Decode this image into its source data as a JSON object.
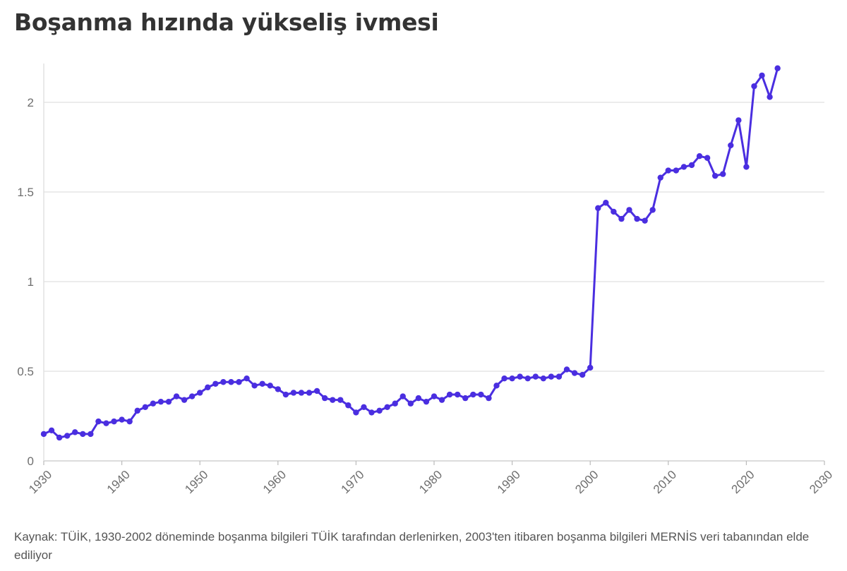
{
  "title": "Boşanma hızında yükseliş ivmesi",
  "source": "Kaynak: TÜİK, 1930-2002 döneminde boşanma bilgileri TÜİK tarafından derlenirken, 2003'ten itibaren boşanma bilgileri MERNİS veri tabanından elde ediliyor",
  "colors": {
    "line": "#4a2ee0",
    "grid": "#e6e6e6",
    "axis_text": "#6e6e6e",
    "title": "#333333"
  },
  "chart_data": {
    "type": "line",
    "title": "Boşanma hızında yükseliş ivmesi",
    "xlabel": "",
    "ylabel": "",
    "xlim": [
      1930,
      2030
    ],
    "ylim": [
      0,
      2.2
    ],
    "x_ticks": [
      1930,
      1940,
      1950,
      1960,
      1970,
      1980,
      1990,
      2000,
      2010,
      2020,
      2030
    ],
    "y_ticks": [
      0,
      0.5,
      1,
      1.5,
      2
    ],
    "y_tick_labels": [
      "0",
      "0.5",
      "1",
      "1.5",
      "2"
    ],
    "grid": "horizontal",
    "legend": "none",
    "series": [
      {
        "x": [
          1930,
          1931,
          1932,
          1933,
          1934,
          1935,
          1936,
          1937,
          1938,
          1939,
          1940,
          1941,
          1942,
          1943,
          1944,
          1945,
          1946,
          1947,
          1948,
          1949,
          1950,
          1951,
          1952,
          1953,
          1954,
          1955,
          1956,
          1957,
          1958,
          1959,
          1960,
          1961,
          1962,
          1963,
          1964,
          1965,
          1966,
          1967,
          1968,
          1969,
          1970,
          1971,
          1972,
          1973,
          1974,
          1975,
          1976,
          1977,
          1978,
          1979,
          1980,
          1981,
          1982,
          1983,
          1984,
          1985,
          1986,
          1987,
          1988,
          1989,
          1990,
          1991,
          1992,
          1993,
          1994,
          1995,
          1996,
          1997,
          1998,
          1999,
          2000,
          2001,
          2002,
          2003,
          2004,
          2005,
          2006,
          2007,
          2008,
          2009,
          2010,
          2011,
          2012,
          2013,
          2014,
          2015,
          2016,
          2017,
          2018,
          2019,
          2020,
          2021,
          2022,
          2023,
          2024
        ],
        "values": [
          0.15,
          0.17,
          0.13,
          0.14,
          0.16,
          0.15,
          0.15,
          0.22,
          0.21,
          0.22,
          0.23,
          0.22,
          0.28,
          0.3,
          0.32,
          0.33,
          0.33,
          0.36,
          0.34,
          0.36,
          0.38,
          0.41,
          0.43,
          0.44,
          0.44,
          0.44,
          0.46,
          0.42,
          0.43,
          0.42,
          0.4,
          0.37,
          0.38,
          0.38,
          0.38,
          0.39,
          0.35,
          0.34,
          0.34,
          0.31,
          0.27,
          0.3,
          0.27,
          0.28,
          0.3,
          0.32,
          0.36,
          0.32,
          0.35,
          0.33,
          0.36,
          0.34,
          0.37,
          0.37,
          0.35,
          0.37,
          0.37,
          0.35,
          0.42,
          0.46,
          0.46,
          0.47,
          0.46,
          0.47,
          0.46,
          0.47,
          0.47,
          0.51,
          0.49,
          0.48,
          0.52,
          1.41,
          1.44,
          1.39,
          1.35,
          1.4,
          1.35,
          1.34,
          1.4,
          1.58,
          1.62,
          1.62,
          1.64,
          1.65,
          1.7,
          1.69,
          1.59,
          1.6,
          1.76,
          1.9,
          1.64,
          2.09,
          2.15,
          2.03,
          2.19
        ]
      }
    ]
  }
}
